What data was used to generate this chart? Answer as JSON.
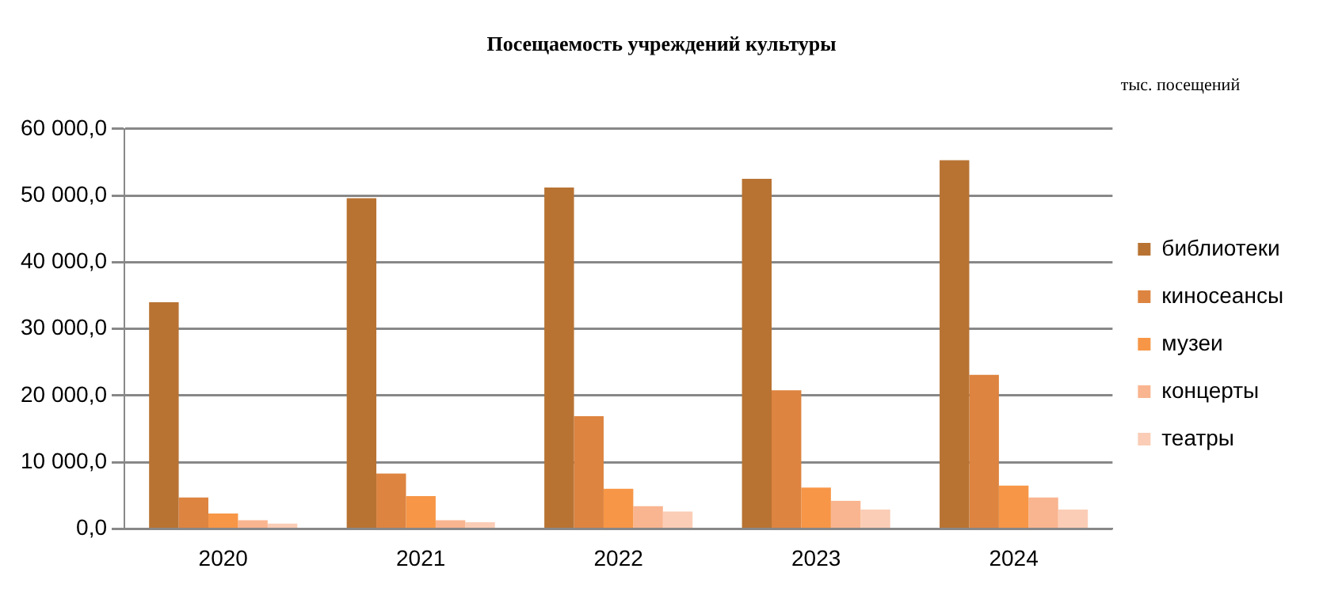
{
  "chart_data": {
    "type": "bar",
    "title": "Посещаемость учреждений культуры",
    "annotations": [
      "тыс. посещений"
    ],
    "categories": [
      "2020",
      "2021",
      "2022",
      "2023",
      "2024"
    ],
    "series": [
      {
        "name": "библиотеки",
        "color": "#b87333",
        "values": [
          34000,
          49600,
          51200,
          52500,
          55300
        ]
      },
      {
        "name": "киносеансы",
        "color": "#dd8440",
        "values": [
          4700,
          8300,
          16900,
          20800,
          23100
        ]
      },
      {
        "name": "музеи",
        "color": "#f79646",
        "values": [
          2300,
          4900,
          6000,
          6200,
          6500
        ]
      },
      {
        "name": "концерты",
        "color": "#f9b590",
        "values": [
          1300,
          1300,
          3400,
          4200,
          4700
        ]
      },
      {
        "name": "театры",
        "color": "#fbcdb6",
        "values": [
          800,
          1000,
          2600,
          2900,
          2900
        ]
      }
    ],
    "ylim": [
      0,
      60000
    ],
    "yticks": [
      {
        "value": 0,
        "label": "0,0"
      },
      {
        "value": 10000,
        "label": "10 000,0"
      },
      {
        "value": 20000,
        "label": "20 000,0"
      },
      {
        "value": 30000,
        "label": "30 000,0"
      },
      {
        "value": 40000,
        "label": "40 000,0"
      },
      {
        "value": 50000,
        "label": "50 000,0"
      },
      {
        "value": 60000,
        "label": "60 000,0"
      }
    ],
    "grid": "y",
    "legend": "right"
  }
}
